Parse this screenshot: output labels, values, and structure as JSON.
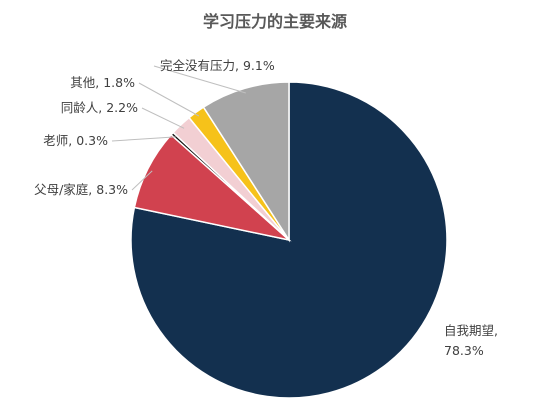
{
  "chart_data": {
    "type": "pie",
    "title": "学习压力的主要来源",
    "unit": "%",
    "slices": [
      {
        "name": "自我期望",
        "value": 78.3,
        "color": "#13304f"
      },
      {
        "name": "父母/家庭",
        "value": 8.3,
        "color": "#d1424f"
      },
      {
        "name": "老师",
        "value": 0.3,
        "color": "#111111"
      },
      {
        "name": "同龄人",
        "value": 2.2,
        "color": "#f2cfd3"
      },
      {
        "name": "其他",
        "value": 1.8,
        "color": "#f6c21a"
      },
      {
        "name": "完全没有压力",
        "value": 9.1,
        "color": "#a6a6a6"
      }
    ],
    "labels": [
      {
        "slice": 0,
        "lines": [
          "自我期望,",
          "78.3%"
        ]
      },
      {
        "slice": 1,
        "lines": [
          "父母/家庭, 8.3%"
        ]
      },
      {
        "slice": 2,
        "lines": [
          "老师, 0.3%"
        ]
      },
      {
        "slice": 3,
        "lines": [
          "同龄人, 2.2%"
        ]
      },
      {
        "slice": 4,
        "lines": [
          "其他, 1.8%"
        ]
      },
      {
        "slice": 5,
        "lines": [
          "完全没有压力, 9.1%"
        ]
      }
    ]
  }
}
